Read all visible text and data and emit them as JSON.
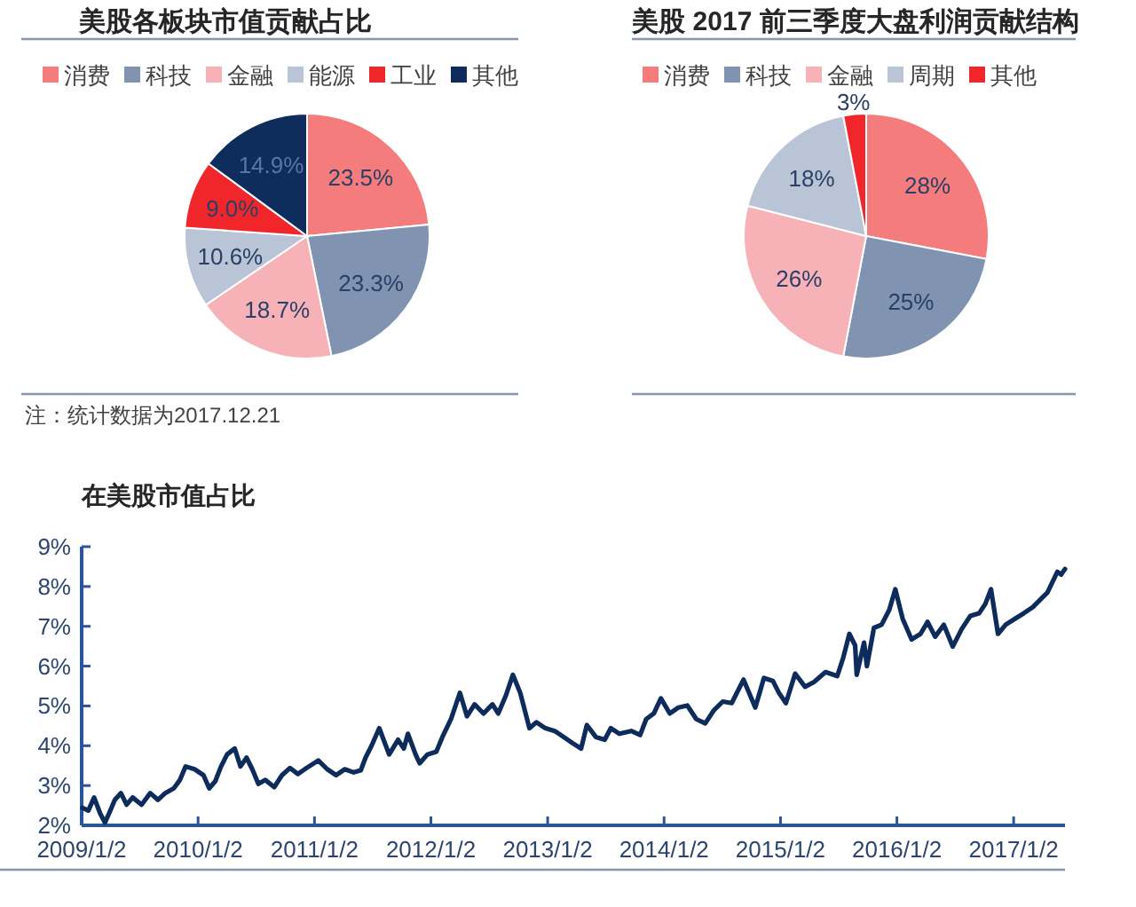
{
  "chart_data": [
    {
      "type": "pie",
      "title": "美股各板块市值贡献占比",
      "categories": [
        "消费",
        "科技",
        "金融",
        "能源",
        "工业",
        "其他"
      ],
      "values": [
        23.5,
        23.3,
        18.7,
        10.6,
        9.0,
        14.9
      ],
      "value_labels": [
        "23.5%",
        "23.3%",
        "18.7%",
        "10.6%",
        "9.0%",
        "14.9%"
      ],
      "colors": [
        "#f47c7c",
        "#8094b1",
        "#f7b2b7",
        "#b9c4d6",
        "#f0262a",
        "#0f2d5c"
      ],
      "legend": "top",
      "annotations": [
        "注：统计数据为2017.12.21"
      ]
    },
    {
      "type": "pie",
      "title": "美股 2017 前三季度大盘利润贡献结构",
      "categories": [
        "消费",
        "科技",
        "金融",
        "周期",
        "其他"
      ],
      "values": [
        28,
        25,
        26,
        18,
        3
      ],
      "value_labels": [
        "28%",
        "25%",
        "26%",
        "18%",
        "3%"
      ],
      "colors": [
        "#f47c7c",
        "#8094b1",
        "#f7b2b7",
        "#b9c4d6",
        "#f0262a"
      ],
      "legend": "top"
    },
    {
      "type": "line",
      "title": "在美股市值占比",
      "x": [
        "2009-01-05",
        "2009-01-23",
        "2009-02-10",
        "2009-03-01",
        "2009-03-16",
        "2009-03-29",
        "2009-04-16",
        "2009-05-05",
        "2009-05-23",
        "2009-06-11",
        "2009-07-09",
        "2009-08-05",
        "2009-08-29",
        "2009-09-21",
        "2009-10-18",
        "2009-11-06",
        "2009-11-24",
        "2009-12-22",
        "2010-01-19",
        "2010-02-06",
        "2010-02-25",
        "2010-03-15",
        "2010-04-03",
        "2010-04-27",
        "2010-05-15",
        "2010-06-03",
        "2010-06-21",
        "2010-07-10",
        "2010-08-01",
        "2010-08-29",
        "2010-09-22",
        "2010-10-17",
        "2010-11-11",
        "2010-12-08",
        "2011-01-14",
        "2011-02-11",
        "2011-03-11",
        "2011-04-07",
        "2011-05-05",
        "2011-05-27",
        "2011-06-11",
        "2011-06-30",
        "2011-07-24",
        "2011-08-24",
        "2011-09-21",
        "2011-10-09",
        "2011-10-22",
        "2011-11-15",
        "2011-11-28",
        "2011-12-22",
        "2012-01-19",
        "2012-02-07",
        "2012-03-05",
        "2012-04-02",
        "2012-04-24",
        "2012-05-18",
        "2012-06-15",
        "2012-07-13",
        "2012-07-31",
        "2012-08-24",
        "2012-09-15",
        "2012-10-08",
        "2012-11-06",
        "2012-11-28",
        "2012-12-26",
        "2013-01-24",
        "2013-02-21",
        "2013-03-20",
        "2013-04-17",
        "2013-05-05",
        "2013-06-02",
        "2013-06-30",
        "2013-07-19",
        "2013-08-15",
        "2013-09-21",
        "2013-10-19",
        "2013-11-07",
        "2013-12-01",
        "2013-12-23",
        "2014-01-20",
        "2014-02-16",
        "2014-03-16",
        "2014-04-13",
        "2014-05-11",
        "2014-06-07",
        "2014-07-05",
        "2014-08-02",
        "2014-09-08",
        "2014-10-15",
        "2014-11-11",
        "2014-12-09",
        "2014-12-28",
        "2015-01-19",
        "2015-02-17",
        "2015-03-20",
        "2015-04-17",
        "2015-05-23",
        "2015-06-29",
        "2015-07-18",
        "2015-08-06",
        "2015-08-24",
        "2015-08-29",
        "2015-09-21",
        "2015-09-30",
        "2015-10-22",
        "2015-11-15",
        "2015-12-09",
        "2015-12-28",
        "2016-01-20",
        "2016-02-17",
        "2016-03-16",
        "2016-04-07",
        "2016-05-01",
        "2016-05-28",
        "2016-06-25",
        "2016-07-23",
        "2016-08-19",
        "2016-09-16",
        "2016-10-05",
        "2016-10-23",
        "2016-11-14",
        "2016-12-08",
        "2017-01-06",
        "2017-02-03",
        "2017-03-03",
        "2017-03-30",
        "2017-04-18",
        "2017-05-06",
        "2017-05-19",
        "2017-05-31",
        "2017-06-12"
      ],
      "series": [
        {
          "color": "#0d2c5c",
          "values": [
            2.44,
            2.37,
            2.7,
            2.3,
            2.07,
            2.3,
            2.64,
            2.81,
            2.52,
            2.7,
            2.52,
            2.81,
            2.64,
            2.81,
            2.93,
            3.14,
            3.48,
            3.41,
            3.26,
            2.93,
            3.11,
            3.48,
            3.78,
            3.93,
            3.48,
            3.7,
            3.41,
            3.04,
            3.14,
            2.96,
            3.26,
            3.44,
            3.29,
            3.44,
            3.63,
            3.41,
            3.26,
            3.41,
            3.33,
            3.38,
            3.7,
            4.0,
            4.44,
            3.78,
            4.15,
            3.93,
            4.3,
            3.78,
            3.56,
            3.78,
            3.85,
            4.22,
            4.67,
            5.33,
            4.74,
            5.04,
            4.81,
            5.04,
            4.81,
            5.26,
            5.78,
            5.33,
            4.44,
            4.59,
            4.44,
            4.37,
            4.22,
            4.07,
            3.93,
            4.52,
            4.22,
            4.15,
            4.44,
            4.3,
            4.37,
            4.27,
            4.67,
            4.81,
            5.19,
            4.81,
            4.96,
            5.01,
            4.67,
            4.56,
            4.89,
            5.11,
            5.07,
            5.66,
            4.96,
            5.7,
            5.63,
            5.33,
            5.07,
            5.81,
            5.48,
            5.6,
            5.85,
            5.75,
            6.22,
            6.81,
            6.52,
            5.78,
            6.59,
            6.0,
            6.96,
            7.04,
            7.41,
            7.93,
            7.19,
            6.67,
            6.81,
            7.11,
            6.74,
            7.04,
            6.49,
            6.93,
            7.26,
            7.33,
            7.56,
            7.93,
            6.81,
            7.04,
            7.19,
            7.33,
            7.48,
            7.7,
            7.85,
            8.15,
            8.37,
            8.3,
            8.44
          ]
        }
      ],
      "xlim": [
        "2009-01-02",
        "2017-06-12"
      ],
      "xticks": [
        {
          "value": "2009-01-02",
          "label": "2009/1/2"
        },
        {
          "value": "2010-01-02",
          "label": "2010/1/2"
        },
        {
          "value": "2011-01-02",
          "label": "2011/1/2"
        },
        {
          "value": "2012-01-02",
          "label": "2012/1/2"
        },
        {
          "value": "2013-01-02",
          "label": "2013/1/2"
        },
        {
          "value": "2014-01-02",
          "label": "2014/1/2"
        },
        {
          "value": "2015-01-02",
          "label": "2015/1/2"
        },
        {
          "value": "2016-01-02",
          "label": "2016/1/2"
        },
        {
          "value": "2017-01-02",
          "label": "2017/1/2"
        }
      ],
      "ylim": [
        2,
        9
      ],
      "yticks": [
        {
          "value": 2,
          "label": "2%"
        },
        {
          "value": 3,
          "label": "3%"
        },
        {
          "value": 4,
          "label": "4%"
        },
        {
          "value": 5,
          "label": "5%"
        },
        {
          "value": 6,
          "label": "6%"
        },
        {
          "value": 7,
          "label": "7%"
        },
        {
          "value": 8,
          "label": "8%"
        },
        {
          "value": 9,
          "label": "9%"
        }
      ]
    }
  ]
}
